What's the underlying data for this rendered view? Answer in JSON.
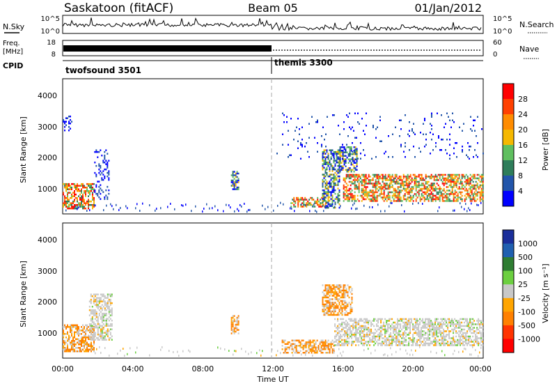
{
  "header": {
    "station": "Saskatoon (fitACF)",
    "beam": "Beam 05",
    "date": "01/Jan/2012"
  },
  "noise_panel": {
    "left_label": "N.Sky",
    "right_label": "N.Search",
    "left_ticks": [
      "10^5",
      "10^0"
    ],
    "right_ticks": [
      "10^5",
      "10^0"
    ]
  },
  "freq_panel": {
    "label_line1": "Freq.",
    "label_line2": "[MHz]",
    "left_ticks": [
      "18",
      "8"
    ],
    "right_label": "Nave",
    "right_ticks": [
      "60",
      "0"
    ]
  },
  "cpid_panel": {
    "label": "CPID",
    "segments": [
      {
        "name": "twofsound 3501",
        "start_hour": 0,
        "end_hour": 12
      },
      {
        "name": "themis 3300",
        "start_hour": 12,
        "end_hour": 24
      }
    ]
  },
  "colors": {
    "power": [
      "#0000ff",
      "#2255aa",
      "#2e7d5a",
      "#5fbf5f",
      "#f5b800",
      "#ff8c00",
      "#ff4000",
      "#ff0000"
    ],
    "velocity": [
      "#ff0000",
      "#ff3300",
      "#ff8000",
      "#ffa500",
      "#c8c8c8",
      "#6ccf40",
      "#2e7d32",
      "#2060b0",
      "#1a2e9a"
    ]
  },
  "chart_data": [
    {
      "type": "heatmap",
      "panel": "Power",
      "ylabel": "Slant Range [km]",
      "y_ticks": [
        "1000",
        "2000",
        "3000",
        "4000"
      ],
      "ylim": [
        200,
        4600
      ],
      "xlim_hours": [
        0,
        24
      ],
      "colorbar": {
        "title": "Power [dB]",
        "ticks": [
          "4",
          "8",
          "12",
          "16",
          "20",
          "24",
          "28"
        ]
      },
      "echo_regions": [
        {
          "start_hour": 0.0,
          "end_hour": 1.8,
          "range_min_km": 400,
          "range_max_km": 1200,
          "level": "strong"
        },
        {
          "start_hour": 1.8,
          "end_hour": 2.6,
          "range_min_km": 700,
          "range_max_km": 2300,
          "level": "weak"
        },
        {
          "start_hour": 0.0,
          "end_hour": 0.5,
          "range_min_km": 2800,
          "range_max_km": 3400,
          "level": "weak"
        },
        {
          "start_hour": 9.6,
          "end_hour": 10.0,
          "range_min_km": 1000,
          "range_max_km": 1600,
          "level": "medium"
        },
        {
          "start_hour": 13.0,
          "end_hour": 15.0,
          "range_min_km": 450,
          "range_max_km": 750,
          "level": "strong"
        },
        {
          "start_hour": 14.8,
          "end_hour": 15.8,
          "range_min_km": 400,
          "range_max_km": 2300,
          "level": "medium"
        },
        {
          "start_hour": 15.8,
          "end_hour": 16.8,
          "range_min_km": 1600,
          "range_max_km": 2400,
          "level": "medium"
        },
        {
          "start_hour": 16.0,
          "end_hour": 24.0,
          "range_min_km": 600,
          "range_max_km": 1500,
          "level": "strong"
        },
        {
          "start_hour": 12.2,
          "end_hour": 24.0,
          "range_min_km": 2000,
          "range_max_km": 3500,
          "level": "sparse"
        }
      ]
    },
    {
      "type": "heatmap",
      "panel": "Velocity",
      "ylabel": "Slant Range [km]",
      "y_ticks": [
        "1000",
        "2000",
        "3000",
        "4000"
      ],
      "ylim": [
        200,
        4600
      ],
      "xlim_hours": [
        0,
        24
      ],
      "xlabel": "Time UT",
      "x_ticks": [
        "00:00",
        "04:00",
        "08:00",
        "12:00",
        "16:00",
        "20:00",
        "00:00"
      ],
      "colorbar": {
        "title": "Velocity [m s⁻¹]",
        "ticks": [
          "1000",
          "500",
          "100",
          "25",
          "-25",
          "-100",
          "-500",
          "-1000"
        ]
      },
      "echo_regions": [
        {
          "start_hour": 0.0,
          "end_hour": 1.8,
          "range_min_km": 400,
          "range_max_km": 1300,
          "sign": "negative"
        },
        {
          "start_hour": 1.5,
          "end_hour": 2.8,
          "range_min_km": 800,
          "range_max_km": 2300,
          "sign": "near-zero"
        },
        {
          "start_hour": 9.6,
          "end_hour": 10.0,
          "range_min_km": 1000,
          "range_max_km": 1600,
          "sign": "negative"
        },
        {
          "start_hour": 12.5,
          "end_hour": 15.5,
          "range_min_km": 400,
          "range_max_km": 800,
          "sign": "negative"
        },
        {
          "start_hour": 14.8,
          "end_hour": 16.5,
          "range_min_km": 1600,
          "range_max_km": 2600,
          "sign": "negative"
        },
        {
          "start_hour": 15.5,
          "end_hour": 24.0,
          "range_min_km": 600,
          "range_max_km": 1500,
          "sign": "near-zero"
        }
      ]
    }
  ]
}
